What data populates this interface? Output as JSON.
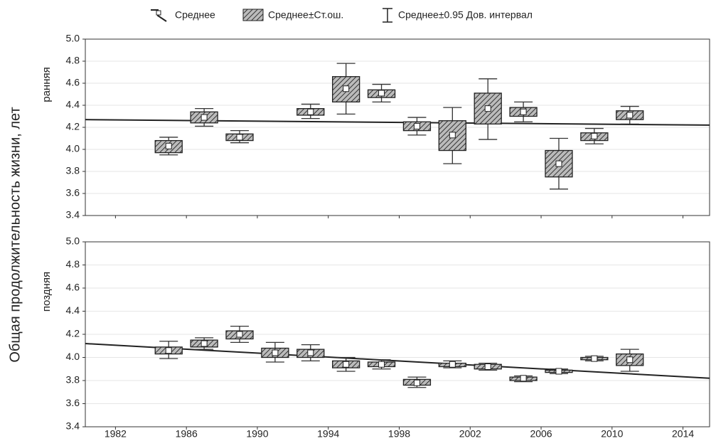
{
  "legend": [
    "Среднее",
    "Среднее±Ст.ош.",
    "Среднее±0.95 Дов. интервал"
  ],
  "y_label": "Общая продолжительность жизни, лет",
  "chart_data": [
    {
      "type": "box",
      "subtitle": "ранняя",
      "x": [
        1985,
        1987,
        1989,
        1993,
        1995,
        1997,
        1999,
        2001,
        2003,
        2005,
        2007,
        2009,
        2011
      ],
      "mean": [
        4.03,
        4.29,
        4.11,
        4.34,
        4.55,
        4.51,
        4.21,
        4.13,
        4.37,
        4.34,
        3.87,
        4.12,
        4.31
      ],
      "se_low": [
        3.97,
        4.24,
        4.08,
        4.31,
        4.43,
        4.47,
        4.17,
        3.99,
        4.23,
        4.3,
        3.75,
        4.08,
        4.27
      ],
      "se_high": [
        4.08,
        4.34,
        4.14,
        4.37,
        4.66,
        4.54,
        4.25,
        4.26,
        4.51,
        4.38,
        3.99,
        4.15,
        4.35
      ],
      "ci_low": [
        3.95,
        4.21,
        4.06,
        4.28,
        4.32,
        4.43,
        4.13,
        3.87,
        4.09,
        4.25,
        3.64,
        4.05,
        4.23
      ],
      "ci_high": [
        4.11,
        4.37,
        4.17,
        4.41,
        4.78,
        4.59,
        4.29,
        4.38,
        4.64,
        4.43,
        4.1,
        4.19,
        4.39
      ],
      "trend": {
        "x": [
          1980.3,
          2015.5
        ],
        "y": [
          4.27,
          4.22
        ]
      },
      "xlim": [
        1980.3,
        2015.5
      ],
      "ylim": [
        3.4,
        5.0
      ],
      "yticks": [
        3.4,
        3.6,
        3.8,
        {
          "value": 4,
          "label": "4.0"
        },
        4.2,
        4.4,
        4.6,
        4.8,
        {
          "value": 5,
          "label": "5.0"
        }
      ],
      "grid": true
    },
    {
      "type": "box",
      "subtitle": "поздняя",
      "x": [
        1985,
        1987,
        1989,
        1991,
        1993,
        1995,
        1997,
        1999,
        2001,
        2003,
        2005,
        2007,
        2009,
        2011
      ],
      "mean": [
        4.06,
        4.12,
        4.2,
        4.04,
        4.04,
        3.94,
        3.94,
        3.78,
        3.94,
        3.92,
        3.82,
        3.88,
        3.99,
        3.98
      ],
      "se_low": [
        4.03,
        4.09,
        4.16,
        4.0,
        4.0,
        3.91,
        3.92,
        3.76,
        3.92,
        3.9,
        3.8,
        3.87,
        3.98,
        3.93
      ],
      "se_high": [
        4.09,
        4.15,
        4.23,
        4.08,
        4.07,
        3.97,
        3.96,
        3.81,
        3.95,
        3.94,
        3.83,
        3.89,
        4.0,
        4.03
      ],
      "ci_low": [
        3.99,
        4.07,
        4.13,
        3.96,
        3.97,
        3.88,
        3.9,
        3.74,
        3.91,
        3.89,
        3.79,
        3.86,
        3.97,
        3.88
      ],
      "ci_high": [
        4.14,
        4.17,
        4.27,
        4.13,
        4.11,
        4.0,
        3.98,
        3.83,
        3.97,
        3.95,
        3.84,
        3.9,
        4.01,
        4.07
      ],
      "trend": {
        "x": [
          1980.3,
          2015.5
        ],
        "y": [
          4.12,
          3.82
        ]
      },
      "xlim": [
        1980.3,
        2015.5
      ],
      "ylim": [
        3.4,
        5.0
      ],
      "yticks": [
        3.4,
        3.6,
        3.8,
        {
          "value": 4,
          "label": "4.0"
        },
        4.2,
        4.4,
        4.6,
        4.8,
        {
          "value": 5,
          "label": "5.0"
        }
      ],
      "xticks": [
        1982,
        1986,
        1990,
        1994,
        1998,
        2002,
        2006,
        2010,
        2014
      ],
      "grid": true
    }
  ]
}
